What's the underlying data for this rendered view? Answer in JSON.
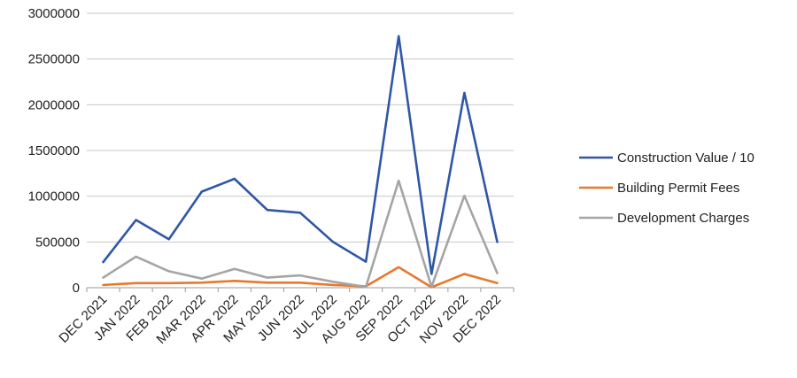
{
  "chart_data": {
    "type": "line",
    "title": "",
    "xlabel": "",
    "ylabel": "",
    "ylim": [
      0,
      3000000
    ],
    "yticks": [
      0,
      500000,
      1000000,
      1500000,
      2000000,
      2500000,
      3000000
    ],
    "grid": "horizontal",
    "legend_position": "right",
    "categories": [
      "DEC 2021",
      "JAN 2022",
      "FEB 2022",
      "MAR 2022",
      "APR 2022",
      "MAY 2022",
      "JUN 2022",
      "JUL 2022",
      "AUG 2022",
      "SEP 2022",
      "OCT 2022",
      "NOV 2022",
      "DEC 2022"
    ],
    "series": [
      {
        "name": "Construction Value / 10",
        "color": "#2f57a6",
        "values": [
          280000,
          740000,
          530000,
          1050000,
          1190000,
          850000,
          820000,
          500000,
          285000,
          2750000,
          150000,
          2130000,
          500000
        ]
      },
      {
        "name": "Building Permit Fees",
        "color": "#e8782c",
        "values": [
          30000,
          50000,
          50000,
          55000,
          75000,
          55000,
          55000,
          30000,
          15000,
          225000,
          5000,
          150000,
          50000
        ]
      },
      {
        "name": "Development Charges",
        "color": "#a5a5a5",
        "values": [
          110000,
          340000,
          180000,
          100000,
          205000,
          110000,
          135000,
          65000,
          10000,
          1170000,
          10000,
          1005000,
          160000
        ]
      }
    ]
  }
}
